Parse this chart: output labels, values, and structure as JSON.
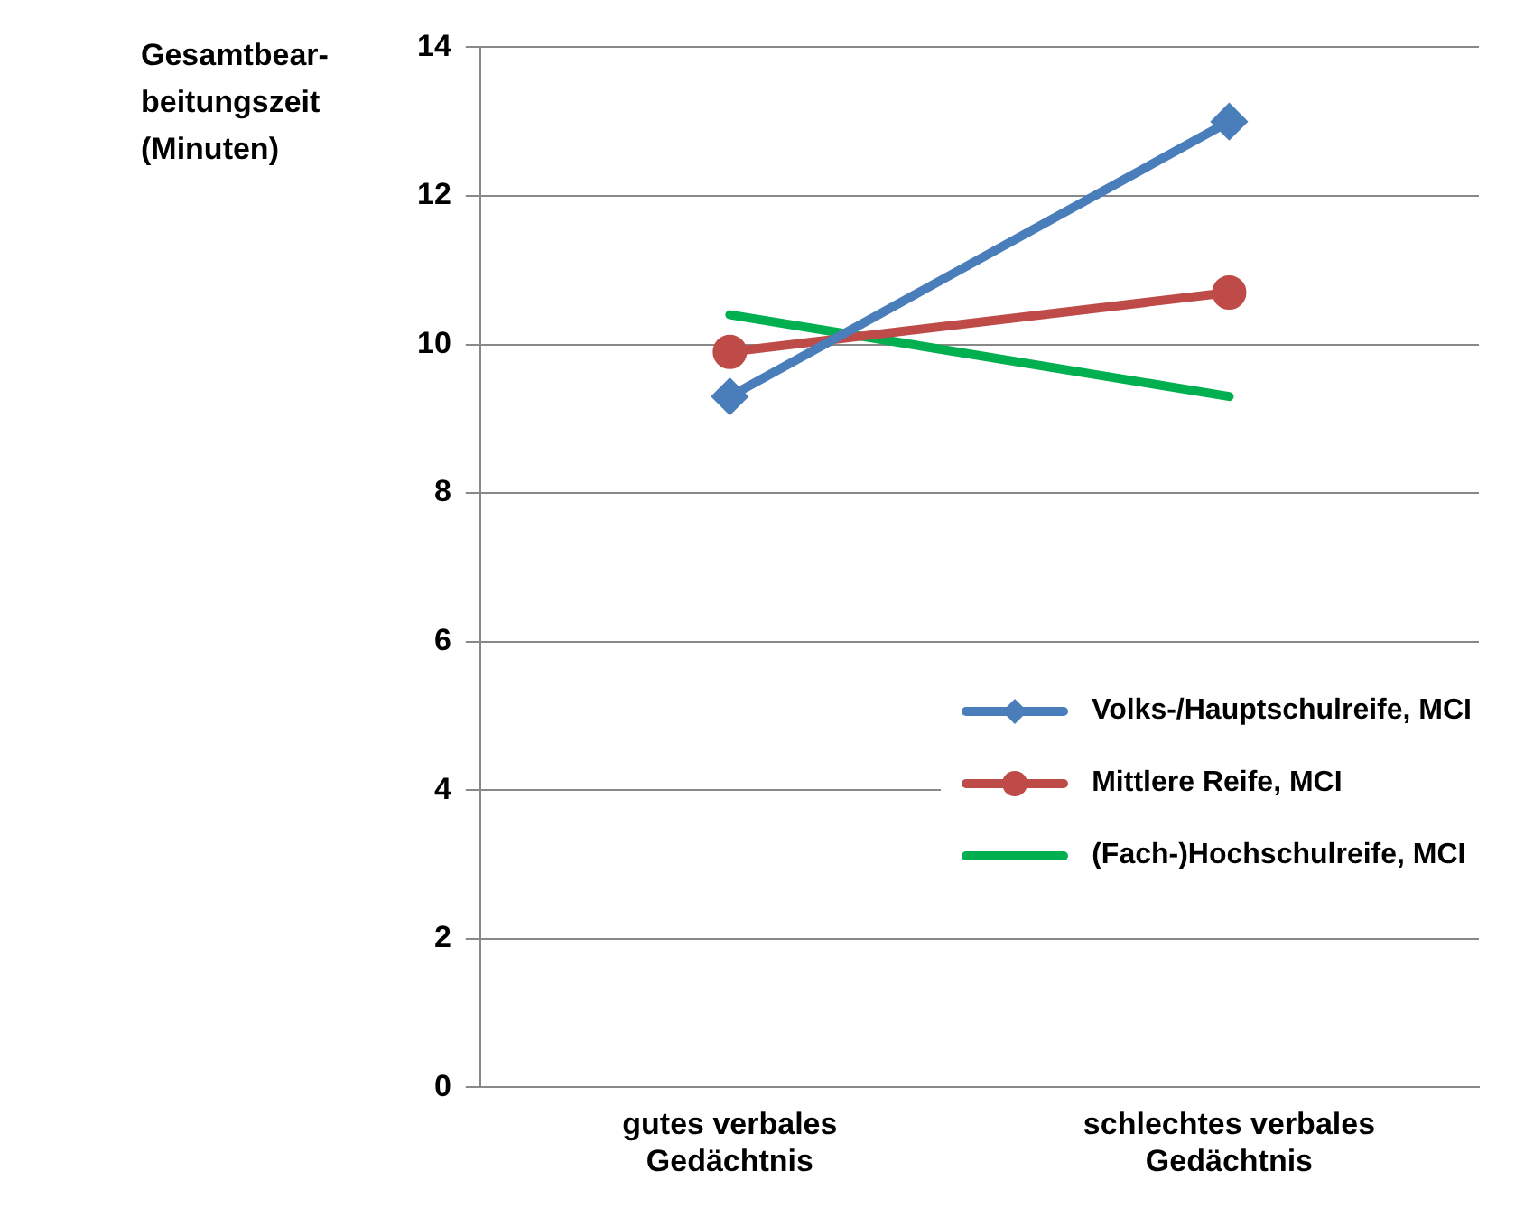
{
  "chart_data": {
    "type": "line",
    "ylabel": "Gesamtbear-beitungszeit (Minuten)",
    "categories": [
      "gutes verbales Gedächtnis",
      "schlechtes verbales Gedächtnis"
    ],
    "series": [
      {
        "name": "Volks-/Hauptschulreife, MCI",
        "color": "#4a7ebb",
        "values": [
          9.3,
          13.0
        ],
        "marker": "diamond"
      },
      {
        "name": "Mittlere Reife, MCI",
        "color": "#be4b48",
        "values": [
          9.9,
          10.7
        ],
        "marker": "circle"
      },
      {
        "name": "(Fach-)Hochschulreife, MCI",
        "color": "#00b050",
        "values": [
          10.4,
          9.3
        ],
        "marker": "none"
      }
    ],
    "ylim": [
      0,
      14
    ],
    "yticks": [
      0,
      2,
      4,
      6,
      8,
      10,
      12,
      14
    ],
    "grid": "y",
    "legend": "bottom right"
  }
}
